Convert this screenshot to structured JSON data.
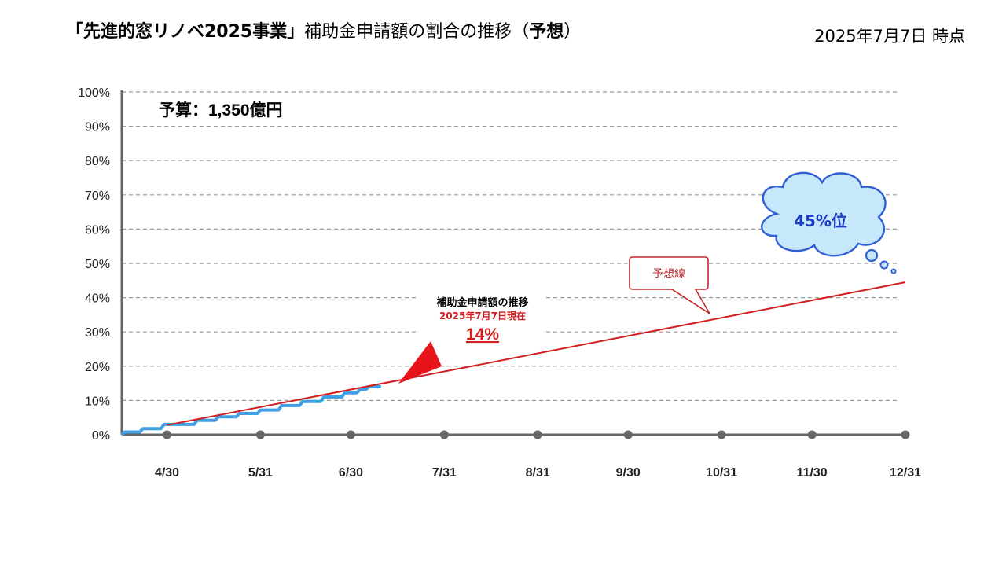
{
  "header": {
    "title_bold": "「先進的窓リノベ2025事業」",
    "title_rest": "補助金申請額の割合の推移",
    "title_paren_open": "（",
    "title_paren_bold": "予想",
    "title_paren_close": "）",
    "as_of": "2025年7月7日 時点"
  },
  "chart_data": {
    "type": "line",
    "ylim": [
      0,
      100
    ],
    "y_ticks": [
      "0%",
      "10%",
      "20%",
      "30%",
      "40%",
      "50%",
      "60%",
      "70%",
      "80%",
      "90%",
      "100%"
    ],
    "x_ticks": [
      "4/30",
      "5/31",
      "6/30",
      "7/31",
      "8/31",
      "9/30",
      "10/31",
      "11/30",
      "12/31"
    ],
    "xlim": [
      "2025-04-15",
      "2025-12-31"
    ],
    "grid": true,
    "budget_label": "予算：1,350億円",
    "series": [
      {
        "name": "補助金申請額の推移",
        "color": "#3fa0e8",
        "points": [
          [
            "2025-04-15",
            0.0
          ],
          [
            "2025-04-16",
            0.8
          ],
          [
            "2025-04-21",
            0.8
          ],
          [
            "2025-04-22",
            1.8
          ],
          [
            "2025-04-28",
            1.8
          ],
          [
            "2025-04-29",
            3.0
          ],
          [
            "2025-05-09",
            3.0
          ],
          [
            "2025-05-10",
            4.2
          ],
          [
            "2025-05-16",
            4.2
          ],
          [
            "2025-05-17",
            5.2
          ],
          [
            "2025-05-23",
            5.2
          ],
          [
            "2025-05-24",
            6.2
          ],
          [
            "2025-05-30",
            6.2
          ],
          [
            "2025-05-31",
            7.2
          ],
          [
            "2025-06-06",
            7.2
          ],
          [
            "2025-06-07",
            8.5
          ],
          [
            "2025-06-13",
            8.5
          ],
          [
            "2025-06-14",
            9.7
          ],
          [
            "2025-06-20",
            9.7
          ],
          [
            "2025-06-21",
            11.0
          ],
          [
            "2025-06-27",
            11.0
          ],
          [
            "2025-06-28",
            12.2
          ],
          [
            "2025-07-02",
            12.2
          ],
          [
            "2025-07-03",
            13.2
          ],
          [
            "2025-07-05",
            13.2
          ],
          [
            "2025-07-06",
            14.0
          ],
          [
            "2025-07-10",
            14.0
          ]
        ]
      },
      {
        "name": "予想線",
        "color": "#d11f1f",
        "points": [
          [
            "2025-04-30",
            2.8
          ],
          [
            "2025-12-31",
            44.5
          ]
        ]
      }
    ],
    "annotations": {
      "current_title": "補助金申請額の推移",
      "current_date": "2025年7月7日現在",
      "current_value": "14%",
      "forecast_label": "予想線",
      "forecast_value": "45%位"
    }
  },
  "colors": {
    "axis": "#666666",
    "grid": "#999999",
    "actual": "#3fa0e8",
    "forecast": "#d11f1f",
    "cloud_fill": "#c7e8fb",
    "cloud_stroke": "#2f5fd3",
    "cloud_text": "#1a3cc0"
  }
}
